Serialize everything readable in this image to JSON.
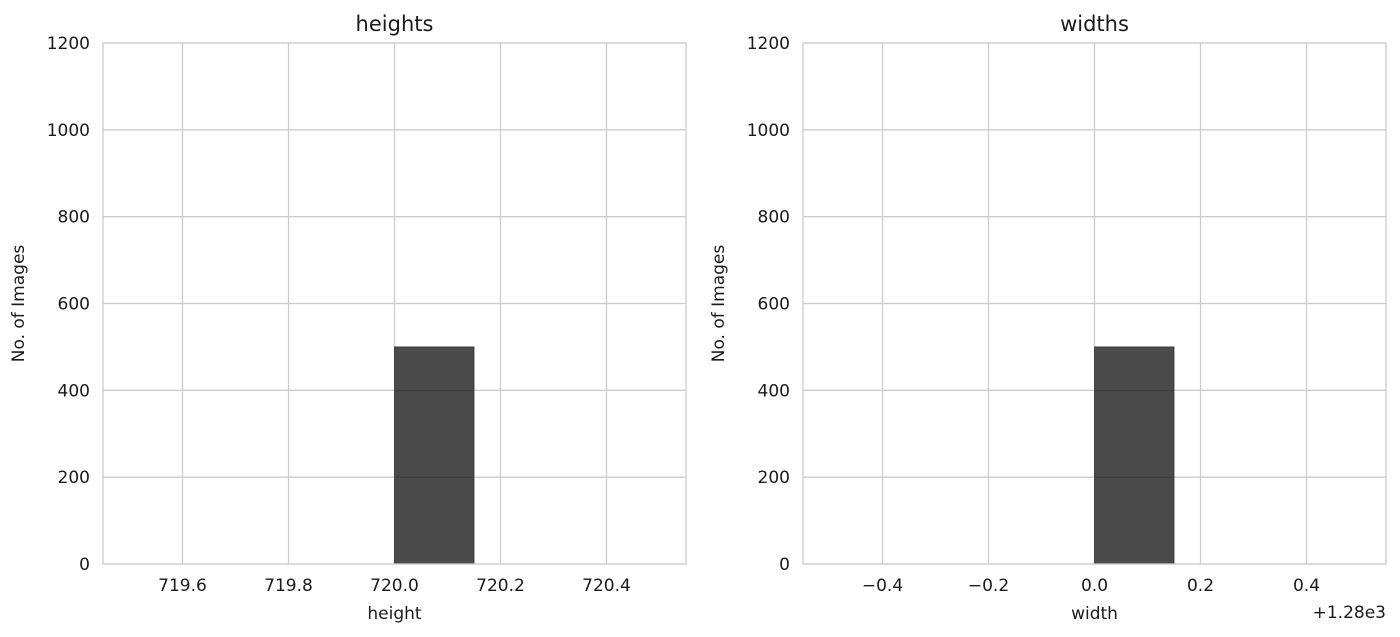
{
  "chart_data": [
    {
      "type": "bar",
      "title": "heights",
      "xlabel": "height",
      "ylabel": "No. of Images",
      "x_offset_label": "",
      "xlim": [
        719.45,
        720.55
      ],
      "ylim": [
        0,
        1200
      ],
      "xticks": [
        719.6,
        719.8,
        720.0,
        720.2,
        720.4
      ],
      "xtick_labels": [
        "719.6",
        "719.8",
        "720.0",
        "720.2",
        "720.4"
      ],
      "yticks": [
        0,
        200,
        400,
        600,
        800,
        1000,
        1200
      ],
      "ytick_labels": [
        "0",
        "200",
        "400",
        "600",
        "800",
        "1000",
        "1200"
      ],
      "grid": true,
      "bars": [
        {
          "x_start": 720.0,
          "x_end": 720.15,
          "value": 500
        }
      ],
      "bar_color": "#4a4a4a"
    },
    {
      "type": "bar",
      "title": "widths",
      "xlabel": "width",
      "ylabel": "No. of Images",
      "x_offset_label": "+1.28e3",
      "xlim": [
        -0.55,
        0.55
      ],
      "ylim": [
        0,
        1200
      ],
      "xticks": [
        -0.4,
        -0.2,
        0.0,
        0.2,
        0.4
      ],
      "xtick_labels": [
        "−0.4",
        "−0.2",
        "0.0",
        "0.2",
        "0.4"
      ],
      "yticks": [
        0,
        200,
        400,
        600,
        800,
        1000,
        1200
      ],
      "ytick_labels": [
        "0",
        "200",
        "400",
        "600",
        "800",
        "1000",
        "1200"
      ],
      "grid": true,
      "bars": [
        {
          "x_start": 0.0,
          "x_end": 0.15,
          "value": 500
        }
      ],
      "bar_color": "#4a4a4a"
    }
  ]
}
